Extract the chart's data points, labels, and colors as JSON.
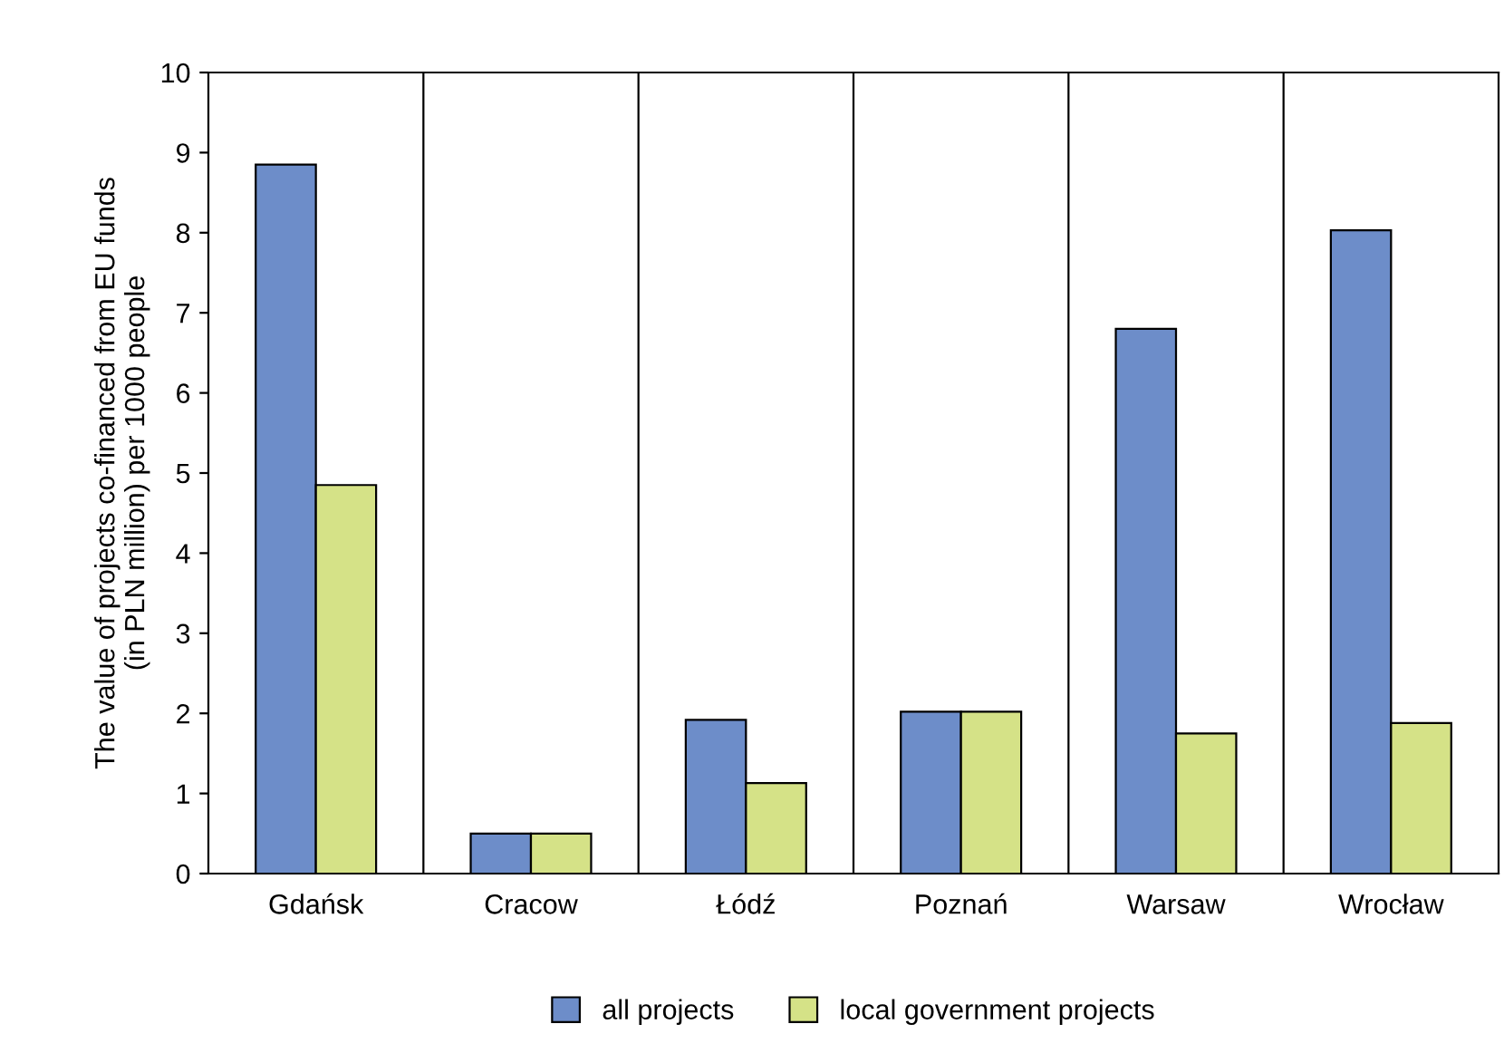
{
  "chart_data": {
    "type": "bar",
    "ylabel": "The value of projects co-financed from EU funds\n(in PLN million) per 1000 people",
    "categories": [
      "Gdańsk",
      "Cracow",
      "Łódź",
      "Poznań",
      "Warsaw",
      "Wrocław"
    ],
    "series": [
      {
        "name": "all projects",
        "color": "#6d8dc9",
        "values": [
          8.85,
          0.5,
          1.92,
          2.02,
          6.8,
          8.03
        ]
      },
      {
        "name": "local government projects",
        "color": "#d5e287",
        "values": [
          4.85,
          0.5,
          1.13,
          2.02,
          1.75,
          1.88
        ]
      }
    ],
    "ylim": [
      0,
      10
    ],
    "yticks": [
      0,
      1,
      2,
      3,
      4,
      5,
      6,
      7,
      8,
      9,
      10
    ],
    "grid": "x",
    "legend": "bottom"
  }
}
